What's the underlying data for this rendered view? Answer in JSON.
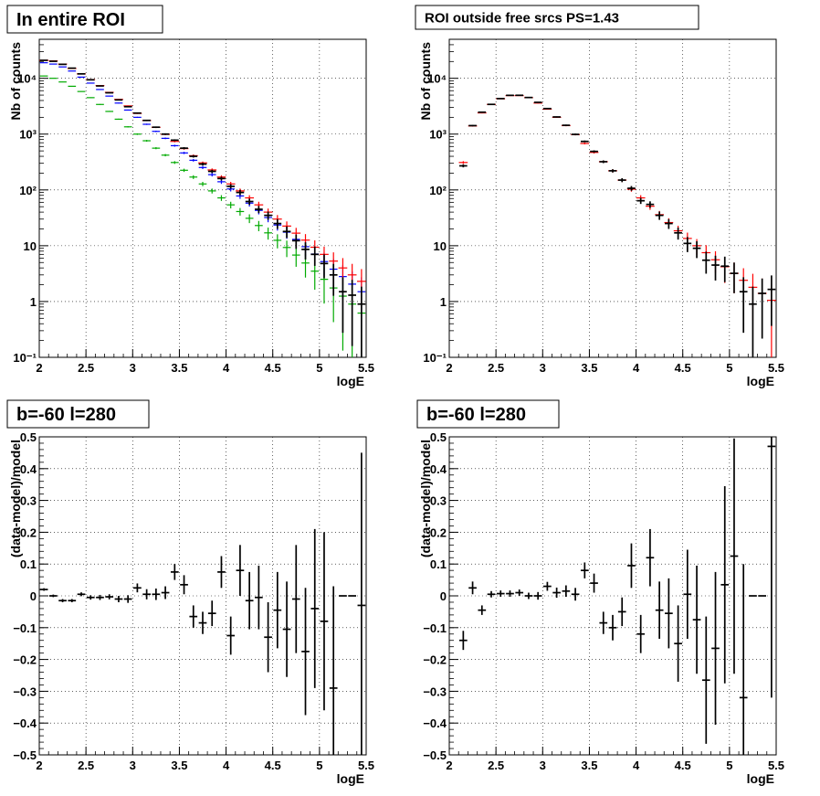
{
  "chart_data": [
    {
      "type": "scatter",
      "title": "In entire ROI",
      "xlabel": "logE",
      "ylabel": "Nb of counts",
      "xlim": [
        2,
        5.5
      ],
      "ylim": [
        0.1,
        50000
      ],
      "yscale": "log",
      "grid": true,
      "x_ticks": [
        "2",
        "2.5",
        "3",
        "3.5",
        "4",
        "4.5",
        "5",
        "5.5"
      ],
      "y_ticks": [
        {
          "value": 0.1,
          "label": "10⁻¹"
        },
        {
          "value": 1,
          "label": "1"
        },
        {
          "value": 10,
          "label": "10"
        },
        {
          "value": 100,
          "label": "10²"
        },
        {
          "value": 1000,
          "label": "10³"
        },
        {
          "value": 10000,
          "label": "10⁴"
        }
      ],
      "series": [
        {
          "color": "#00aa00",
          "x": [
            2.05,
            2.15,
            2.25,
            2.35,
            2.45,
            2.55,
            2.65,
            2.75,
            2.85,
            2.95,
            3.05,
            3.15,
            3.25,
            3.35,
            3.45,
            3.55,
            3.65,
            3.75,
            3.85,
            3.95,
            4.05,
            4.15,
            4.25,
            4.35,
            4.45,
            4.55,
            4.65,
            4.75,
            4.85,
            4.95,
            5.05,
            5.15,
            5.25,
            5.35,
            5.45
          ],
          "y": [
            11000,
            10000,
            8600,
            7200,
            5800,
            4500,
            3400,
            2550,
            1850,
            1350,
            1000,
            760,
            560,
            420,
            310,
            225,
            170,
            128,
            96,
            72,
            54,
            41,
            31,
            23,
            17,
            12.5,
            9.3,
            6.8,
            4.9,
            3.5,
            2.5,
            1.75,
            1.25,
            0.9,
            0.62
          ]
        },
        {
          "color": "#0000ff",
          "x": [
            2.05,
            2.15,
            2.25,
            2.35,
            2.45,
            2.55,
            2.65,
            2.75,
            2.85,
            2.95,
            3.05,
            3.15,
            3.25,
            3.35,
            3.45,
            3.55,
            3.65,
            3.75,
            3.85,
            3.95,
            4.05,
            4.15,
            4.25,
            4.35,
            4.45,
            4.55,
            4.65,
            4.75,
            4.85,
            4.95,
            5.05,
            5.15,
            5.25,
            5.35,
            5.45
          ],
          "y": [
            19000,
            18000,
            16000,
            13500,
            10500,
            8200,
            6300,
            4800,
            3600,
            2700,
            2000,
            1500,
            1120,
            840,
            620,
            460,
            340,
            252,
            188,
            140,
            104,
            78,
            58,
            43,
            32,
            23.5,
            17.5,
            13,
            9.6,
            7.1,
            5.2,
            3.8,
            2.8,
            2.05,
            1.5
          ]
        },
        {
          "color": "#ff0000",
          "x": [
            2.05,
            2.15,
            2.25,
            2.35,
            2.45,
            2.55,
            2.65,
            2.75,
            2.85,
            2.95,
            3.05,
            3.15,
            3.25,
            3.35,
            3.45,
            3.55,
            3.65,
            3.75,
            3.85,
            3.95,
            4.05,
            4.15,
            4.25,
            4.35,
            4.45,
            4.55,
            4.65,
            4.75,
            4.85,
            4.95,
            5.05,
            5.15,
            5.25,
            5.35,
            5.45
          ],
          "y": [
            21000,
            20500,
            18000,
            15000,
            12000,
            9500,
            7400,
            5600,
            4200,
            3200,
            2350,
            1750,
            1320,
            990,
            740,
            550,
            410,
            305,
            228,
            170,
            128,
            96,
            72,
            54,
            40,
            30,
            22.5,
            16.8,
            12.6,
            9.4,
            7,
            5.3,
            4,
            3,
            2.3
          ]
        },
        {
          "color": "#000000",
          "x": [
            2.05,
            2.15,
            2.25,
            2.35,
            2.45,
            2.55,
            2.65,
            2.75,
            2.85,
            2.95,
            3.05,
            3.15,
            3.25,
            3.35,
            3.45,
            3.55,
            3.65,
            3.75,
            3.85,
            3.95,
            4.05,
            4.15,
            4.25,
            4.35,
            4.45,
            4.55,
            4.65,
            4.75,
            4.85,
            4.95,
            5.05,
            5.15,
            5.25,
            5.35,
            5.45
          ],
          "y": [
            21000,
            20200,
            17800,
            15200,
            12000,
            9400,
            7300,
            5500,
            4100,
            3100,
            2380,
            1760,
            1330,
            1000,
            780,
            560,
            400,
            290,
            215,
            160,
            116,
            90,
            62,
            45,
            35,
            25,
            18,
            12.3,
            8.6,
            7,
            4.8,
            3,
            1.5,
            1.3,
            0.9
          ]
        }
      ]
    },
    {
      "type": "scatter",
      "title": "ROI outside free srcs PS=1.43",
      "xlabel": "logE",
      "ylabel": "Nb of counts",
      "xlim": [
        2,
        5.5
      ],
      "ylim": [
        0.1,
        50000
      ],
      "yscale": "log",
      "grid": true,
      "x_ticks": [
        "2",
        "2.5",
        "3",
        "3.5",
        "4",
        "4.5",
        "5",
        "5.5"
      ],
      "y_ticks": [
        {
          "value": 0.1,
          "label": "10⁻¹"
        },
        {
          "value": 1,
          "label": "1"
        },
        {
          "value": 10,
          "label": "10"
        },
        {
          "value": 100,
          "label": "10²"
        },
        {
          "value": 1000,
          "label": "10³"
        },
        {
          "value": 10000,
          "label": "10⁴"
        }
      ],
      "series": [
        {
          "color": "#ff0000",
          "x": [
            2.15,
            2.25,
            2.35,
            2.45,
            2.55,
            2.65,
            2.75,
            2.85,
            2.95,
            3.05,
            3.15,
            3.25,
            3.35,
            3.45,
            3.55,
            3.65,
            3.75,
            3.85,
            3.95,
            4.05,
            4.15,
            4.25,
            4.35,
            4.45,
            4.55,
            4.65,
            4.75,
            4.85,
            4.95,
            5.05,
            5.15,
            5.25,
            5.35,
            5.45
          ],
          "y": [
            310,
            1400,
            2400,
            3400,
            4300,
            4900,
            4900,
            4500,
            3600,
            2800,
            2000,
            1420,
            980,
            680,
            470,
            320,
            220,
            150,
            103,
            72,
            51,
            36,
            26,
            18.5,
            13.5,
            10,
            7.5,
            5.6,
            4.2,
            3.2,
            2.4,
            1.8,
            1.4,
            1.05
          ]
        },
        {
          "color": "#000000",
          "x": [
            2.15,
            2.25,
            2.35,
            2.45,
            2.55,
            2.65,
            2.75,
            2.85,
            2.95,
            3.05,
            3.15,
            3.25,
            3.35,
            3.45,
            3.55,
            3.65,
            3.75,
            3.85,
            3.95,
            4.05,
            4.15,
            4.25,
            4.35,
            4.45,
            4.55,
            4.65,
            4.75,
            4.85,
            4.95,
            5.05,
            5.15,
            5.25,
            5.35,
            5.45
          ],
          "y": [
            270,
            1420,
            2470,
            3410,
            4330,
            4950,
            4960,
            4530,
            3710,
            2870,
            2030,
            1440,
            990,
            740,
            490,
            320,
            220,
            150,
            107,
            64,
            55,
            35,
            25,
            17,
            11,
            9,
            5.5,
            4.5,
            4.3,
            3.2,
            1.5,
            0.9,
            1.4,
            1.65
          ]
        }
      ]
    },
    {
      "type": "scatter",
      "title": "b=-60 l=280",
      "xlabel": "logE",
      "ylabel": "(data-model)/model",
      "xlim": [
        2,
        5.5
      ],
      "ylim": [
        -0.5,
        0.5
      ],
      "grid": true,
      "x_ticks": [
        "2",
        "2.5",
        "3",
        "3.5",
        "4",
        "4.5",
        "5",
        "5.5"
      ],
      "y_ticks": [
        {
          "value": -0.5,
          "label": "−0.5"
        },
        {
          "value": -0.4,
          "label": "−0.4"
        },
        {
          "value": -0.3,
          "label": "−0.3"
        },
        {
          "value": -0.2,
          "label": "−0.2"
        },
        {
          "value": -0.1,
          "label": "−0.1"
        },
        {
          "value": 0,
          "label": "0"
        },
        {
          "value": 0.1,
          "label": "0.1"
        },
        {
          "value": 0.2,
          "label": "0.2"
        },
        {
          "value": 0.3,
          "label": "0.3"
        },
        {
          "value": 0.4,
          "label": "0.4"
        },
        {
          "value": 0.5,
          "label": "0.5"
        }
      ],
      "series": [
        {
          "color": "#000000",
          "x": [
            2.05,
            2.15,
            2.25,
            2.35,
            2.45,
            2.55,
            2.65,
            2.75,
            2.85,
            2.95,
            3.05,
            3.15,
            3.25,
            3.35,
            3.45,
            3.55,
            3.65,
            3.75,
            3.85,
            3.95,
            4.05,
            4.15,
            4.25,
            4.35,
            4.45,
            4.55,
            4.65,
            4.75,
            4.85,
            4.95,
            5.05,
            5.15,
            5.25,
            5.35,
            5.45
          ],
          "y": [
            0.02,
            0.0,
            -0.015,
            -0.015,
            0.005,
            -0.005,
            -0.005,
            -0.003,
            -0.01,
            -0.01,
            0.025,
            0.005,
            0.005,
            0.01,
            0.075,
            0.035,
            -0.065,
            -0.085,
            -0.055,
            0.075,
            -0.125,
            0.08,
            -0.015,
            -0.005,
            -0.13,
            -0.045,
            -0.105,
            -0.01,
            -0.175,
            -0.04,
            -0.08,
            -0.29,
            0.0,
            0.0,
            -0.03
          ],
          "err": [
            0.004,
            0.004,
            0.005,
            0.005,
            0.006,
            0.007,
            0.008,
            0.008,
            0.01,
            0.012,
            0.014,
            0.016,
            0.018,
            0.02,
            0.025,
            0.03,
            0.035,
            0.035,
            0.04,
            0.05,
            0.06,
            0.08,
            0.09,
            0.1,
            0.11,
            0.12,
            0.15,
            0.17,
            0.2,
            0.25,
            0.28,
            0.32,
            0.0,
            0.0,
            0.48
          ]
        }
      ]
    },
    {
      "type": "scatter",
      "title": "b=-60 l=280",
      "xlabel": "logE",
      "ylabel": "(data-model)/model",
      "xlim": [
        2,
        5.5
      ],
      "ylim": [
        -0.5,
        0.5
      ],
      "grid": true,
      "x_ticks": [
        "2",
        "2.5",
        "3",
        "3.5",
        "4",
        "4.5",
        "5",
        "5.5"
      ],
      "y_ticks": [
        {
          "value": -0.5,
          "label": "−0.5"
        },
        {
          "value": -0.4,
          "label": "−0.4"
        },
        {
          "value": -0.3,
          "label": "−0.3"
        },
        {
          "value": -0.2,
          "label": "−0.2"
        },
        {
          "value": -0.1,
          "label": "−0.1"
        },
        {
          "value": 0,
          "label": "0"
        },
        {
          "value": 0.1,
          "label": "0.1"
        },
        {
          "value": 0.2,
          "label": "0.2"
        },
        {
          "value": 0.3,
          "label": "0.3"
        },
        {
          "value": 0.4,
          "label": "0.4"
        },
        {
          "value": 0.5,
          "label": "0.5"
        }
      ],
      "series": [
        {
          "color": "#000000",
          "x": [
            2.15,
            2.25,
            2.35,
            2.45,
            2.55,
            2.65,
            2.75,
            2.85,
            2.95,
            3.05,
            3.15,
            3.25,
            3.35,
            3.45,
            3.55,
            3.65,
            3.75,
            3.85,
            3.95,
            4.05,
            4.15,
            4.25,
            4.35,
            4.45,
            4.55,
            4.65,
            4.75,
            4.85,
            4.95,
            5.05,
            5.15,
            5.25,
            5.35,
            5.45
          ],
          "y": [
            -0.14,
            0.025,
            -0.045,
            0.005,
            0.007,
            0.007,
            0.01,
            0.0,
            0.0,
            0.03,
            0.01,
            0.015,
            0.005,
            0.08,
            0.04,
            -0.085,
            -0.1,
            -0.05,
            0.095,
            -0.12,
            0.12,
            -0.045,
            -0.055,
            -0.15,
            0.005,
            -0.075,
            -0.265,
            -0.165,
            0.035,
            0.125,
            -0.32,
            0.0,
            0.0,
            0.47
          ],
          "err": [
            0.03,
            0.02,
            0.015,
            0.01,
            0.01,
            0.01,
            0.01,
            0.01,
            0.012,
            0.014,
            0.016,
            0.018,
            0.02,
            0.025,
            0.03,
            0.035,
            0.04,
            0.045,
            0.07,
            0.06,
            0.09,
            0.09,
            0.11,
            0.12,
            0.14,
            0.17,
            0.2,
            0.24,
            0.31,
            0.37,
            0.42,
            0.0,
            0.0,
            0.79
          ]
        }
      ]
    }
  ]
}
